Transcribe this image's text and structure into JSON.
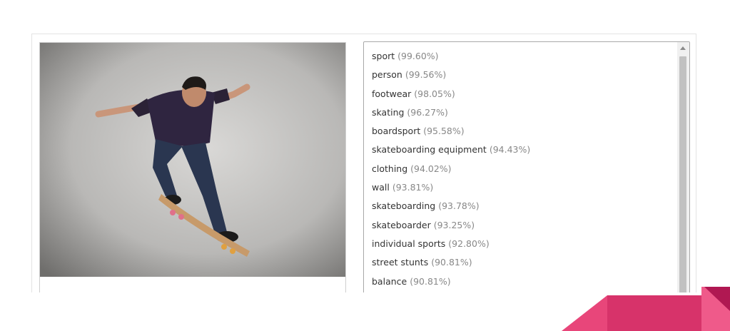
{
  "tags": [
    {
      "label": "sport",
      "confidence": "(99.60%)"
    },
    {
      "label": "person",
      "confidence": "(99.56%)"
    },
    {
      "label": "footwear",
      "confidence": "(98.05%)"
    },
    {
      "label": "skating",
      "confidence": "(96.27%)"
    },
    {
      "label": "boardsport",
      "confidence": "(95.58%)"
    },
    {
      "label": "skateboarding equipment",
      "confidence": "(94.43%)"
    },
    {
      "label": "clothing",
      "confidence": "(94.02%)"
    },
    {
      "label": "wall",
      "confidence": "(93.81%)"
    },
    {
      "label": "skateboarding",
      "confidence": "(93.78%)"
    },
    {
      "label": "skateboarder",
      "confidence": "(93.25%)"
    },
    {
      "label": "individual sports",
      "confidence": "(92.80%)"
    },
    {
      "label": "street stunts",
      "confidence": "(90.81%)"
    },
    {
      "label": "balance",
      "confidence": "(90.81%)"
    }
  ],
  "colors": {
    "label_text": "#333333",
    "confidence_text": "#888888",
    "accent_pink": "#e8467a",
    "accent_magenta": "#c2185b"
  }
}
